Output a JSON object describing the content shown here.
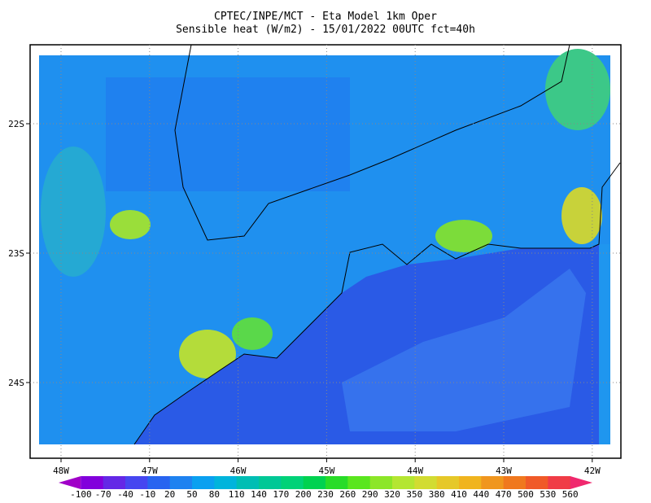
{
  "header": {
    "line1": "CPTEC/INPE/MCT -  Eta Model 1km Oper",
    "line2": "Sensible heat (W/m2) - 15/01/2022 00UTC fct=40h"
  },
  "map": {
    "x_labels": [
      "48W",
      "47W",
      "46W",
      "45W",
      "44W",
      "43W",
      "42W"
    ],
    "y_labels": [
      "22S",
      "23S",
      "24S"
    ]
  },
  "colorbar": {
    "labels": [
      "-100",
      "-70",
      "-40",
      "-10",
      "20",
      "50",
      "80",
      "110",
      "140",
      "170",
      "200",
      "230",
      "260",
      "290",
      "320",
      "350",
      "380",
      "410",
      "440",
      "470",
      "500",
      "530",
      "560"
    ],
    "colors": [
      "#a000c8",
      "#8200dc",
      "#6428e6",
      "#4646f0",
      "#2864f0",
      "#1e82f0",
      "#0aa0f0",
      "#00b4dc",
      "#00beb4",
      "#00c896",
      "#00d278",
      "#00d250",
      "#28dc28",
      "#5ae61e",
      "#8ce628",
      "#b4e632",
      "#d2dc32",
      "#e6c828",
      "#f0b41e",
      "#f0961e",
      "#f0781e",
      "#f05a28",
      "#f03c46",
      "#f0286e"
    ]
  }
}
